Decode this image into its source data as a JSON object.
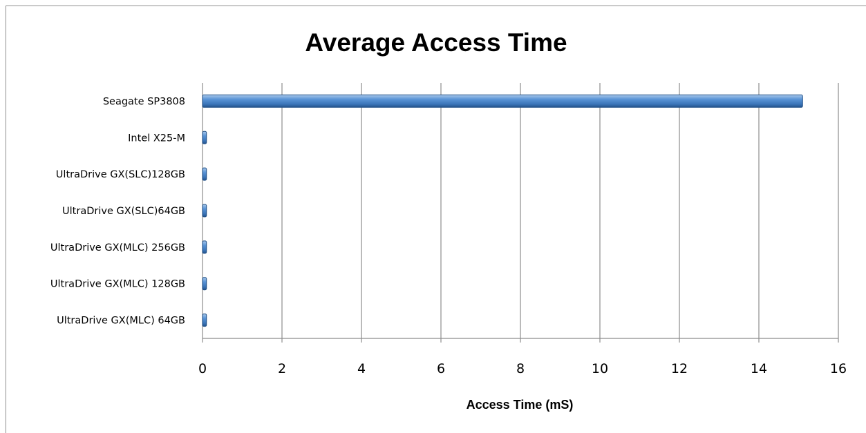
{
  "chart_data": {
    "type": "bar",
    "orientation": "horizontal",
    "title": "Average Access Time",
    "xlabel": "Access Time (mS)",
    "ylabel": "",
    "categories": [
      "Seagate SP3808",
      "Intel X25-M",
      "UltraDrive GX(SLC)128GB",
      "UltraDrive GX(SLC)64GB",
      "UltraDrive GX(MLC) 256GB",
      "UltraDrive GX(MLC) 128GB",
      "UltraDrive GX(MLC)  64GB"
    ],
    "values": [
      15.1,
      0.1,
      0.1,
      0.1,
      0.1,
      0.1,
      0.1
    ],
    "xlim": [
      0,
      16
    ],
    "xticks": [
      "0",
      "2",
      "4",
      "6",
      "8",
      "10",
      "12",
      "14",
      "16"
    ],
    "grid": "vertical",
    "legend": "none",
    "bar_color": "#3f7fc4",
    "bar_edge_color": "#1f4f86",
    "grid_color": "#8c8c8c"
  }
}
